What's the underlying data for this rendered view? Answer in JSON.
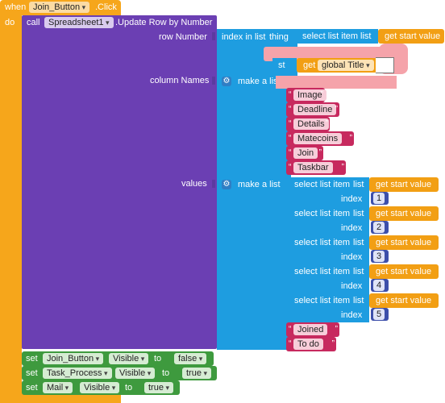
{
  "event": {
    "when": "when",
    "component": "Join_Button",
    "event": ".Click",
    "do": "do"
  },
  "call": {
    "call": "call",
    "component": "Spreadsheet1",
    "method": ".Update Row by Number"
  },
  "row_number": {
    "label": "row Number",
    "index_in_list": "index in list",
    "thing": "thing",
    "select_list_item": "select list item",
    "list": "list",
    "get_start_value": "get start value",
    "partial_list": "st",
    "get": "get",
    "global_title": "global Title"
  },
  "column_names": {
    "label": "column Names",
    "make_a_list": "make a list",
    "items": [
      "Image",
      "Deadline",
      "Details",
      "Matecoins",
      "Join",
      "Taskbar"
    ]
  },
  "values": {
    "label": "values",
    "make_a_list": "make a list",
    "select_list_item": "select list item",
    "list": "list",
    "index": "index",
    "get_start_value": "get start value",
    "indices": [
      "1",
      "2",
      "3",
      "4",
      "5"
    ],
    "strings": [
      "Joined",
      "To do"
    ]
  },
  "setters": [
    {
      "set": "set",
      "component": "Join_Button",
      "property": "Visible",
      "to": "to",
      "value": "false"
    },
    {
      "set": "set",
      "component": "Task_Process",
      "property": "Visible",
      "to": "to",
      "value": "true"
    },
    {
      "set": "set",
      "component": "Mail",
      "property": "Visible",
      "to": "to",
      "value": "true"
    }
  ],
  "colors": {
    "event": "#f6a61b",
    "procedure": "#6b3fb3",
    "list": "#1e9de0",
    "text": "#c7295e",
    "math": "#3d4faa",
    "variable": "#f29f14",
    "setter": "#3e9a3e",
    "redaction": "#f5a3aa"
  }
}
